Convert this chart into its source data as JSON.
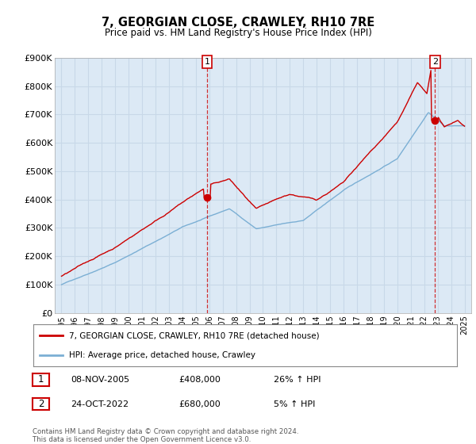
{
  "title": "7, GEORGIAN CLOSE, CRAWLEY, RH10 7RE",
  "subtitle": "Price paid vs. HM Land Registry's House Price Index (HPI)",
  "ylim": [
    0,
    900000
  ],
  "yticks": [
    0,
    100000,
    200000,
    300000,
    400000,
    500000,
    600000,
    700000,
    800000,
    900000
  ],
  "ytick_labels": [
    "£0",
    "£100K",
    "£200K",
    "£300K",
    "£400K",
    "£500K",
    "£600K",
    "£700K",
    "£800K",
    "£900K"
  ],
  "line1_color": "#cc0000",
  "line2_color": "#7bafd4",
  "marker_color": "#cc0000",
  "chart_bg": "#dce9f5",
  "sale1_x": 2005.85,
  "sale1_y": 408000,
  "sale2_x": 2022.81,
  "sale2_y": 680000,
  "annotation1_label": "1",
  "annotation2_label": "2",
  "legend_line1": "7, GEORGIAN CLOSE, CRAWLEY, RH10 7RE (detached house)",
  "legend_line2": "HPI: Average price, detached house, Crawley",
  "table_row1_num": "1",
  "table_row1_date": "08-NOV-2005",
  "table_row1_price": "£408,000",
  "table_row1_hpi": "26% ↑ HPI",
  "table_row2_num": "2",
  "table_row2_date": "24-OCT-2022",
  "table_row2_price": "£680,000",
  "table_row2_hpi": "5% ↑ HPI",
  "footnote": "Contains HM Land Registry data © Crown copyright and database right 2024.\nThis data is licensed under the Open Government Licence v3.0.",
  "background_color": "#ffffff",
  "grid_color": "#c8d8e8",
  "xlim_start": 1994.5,
  "xlim_end": 2025.5
}
